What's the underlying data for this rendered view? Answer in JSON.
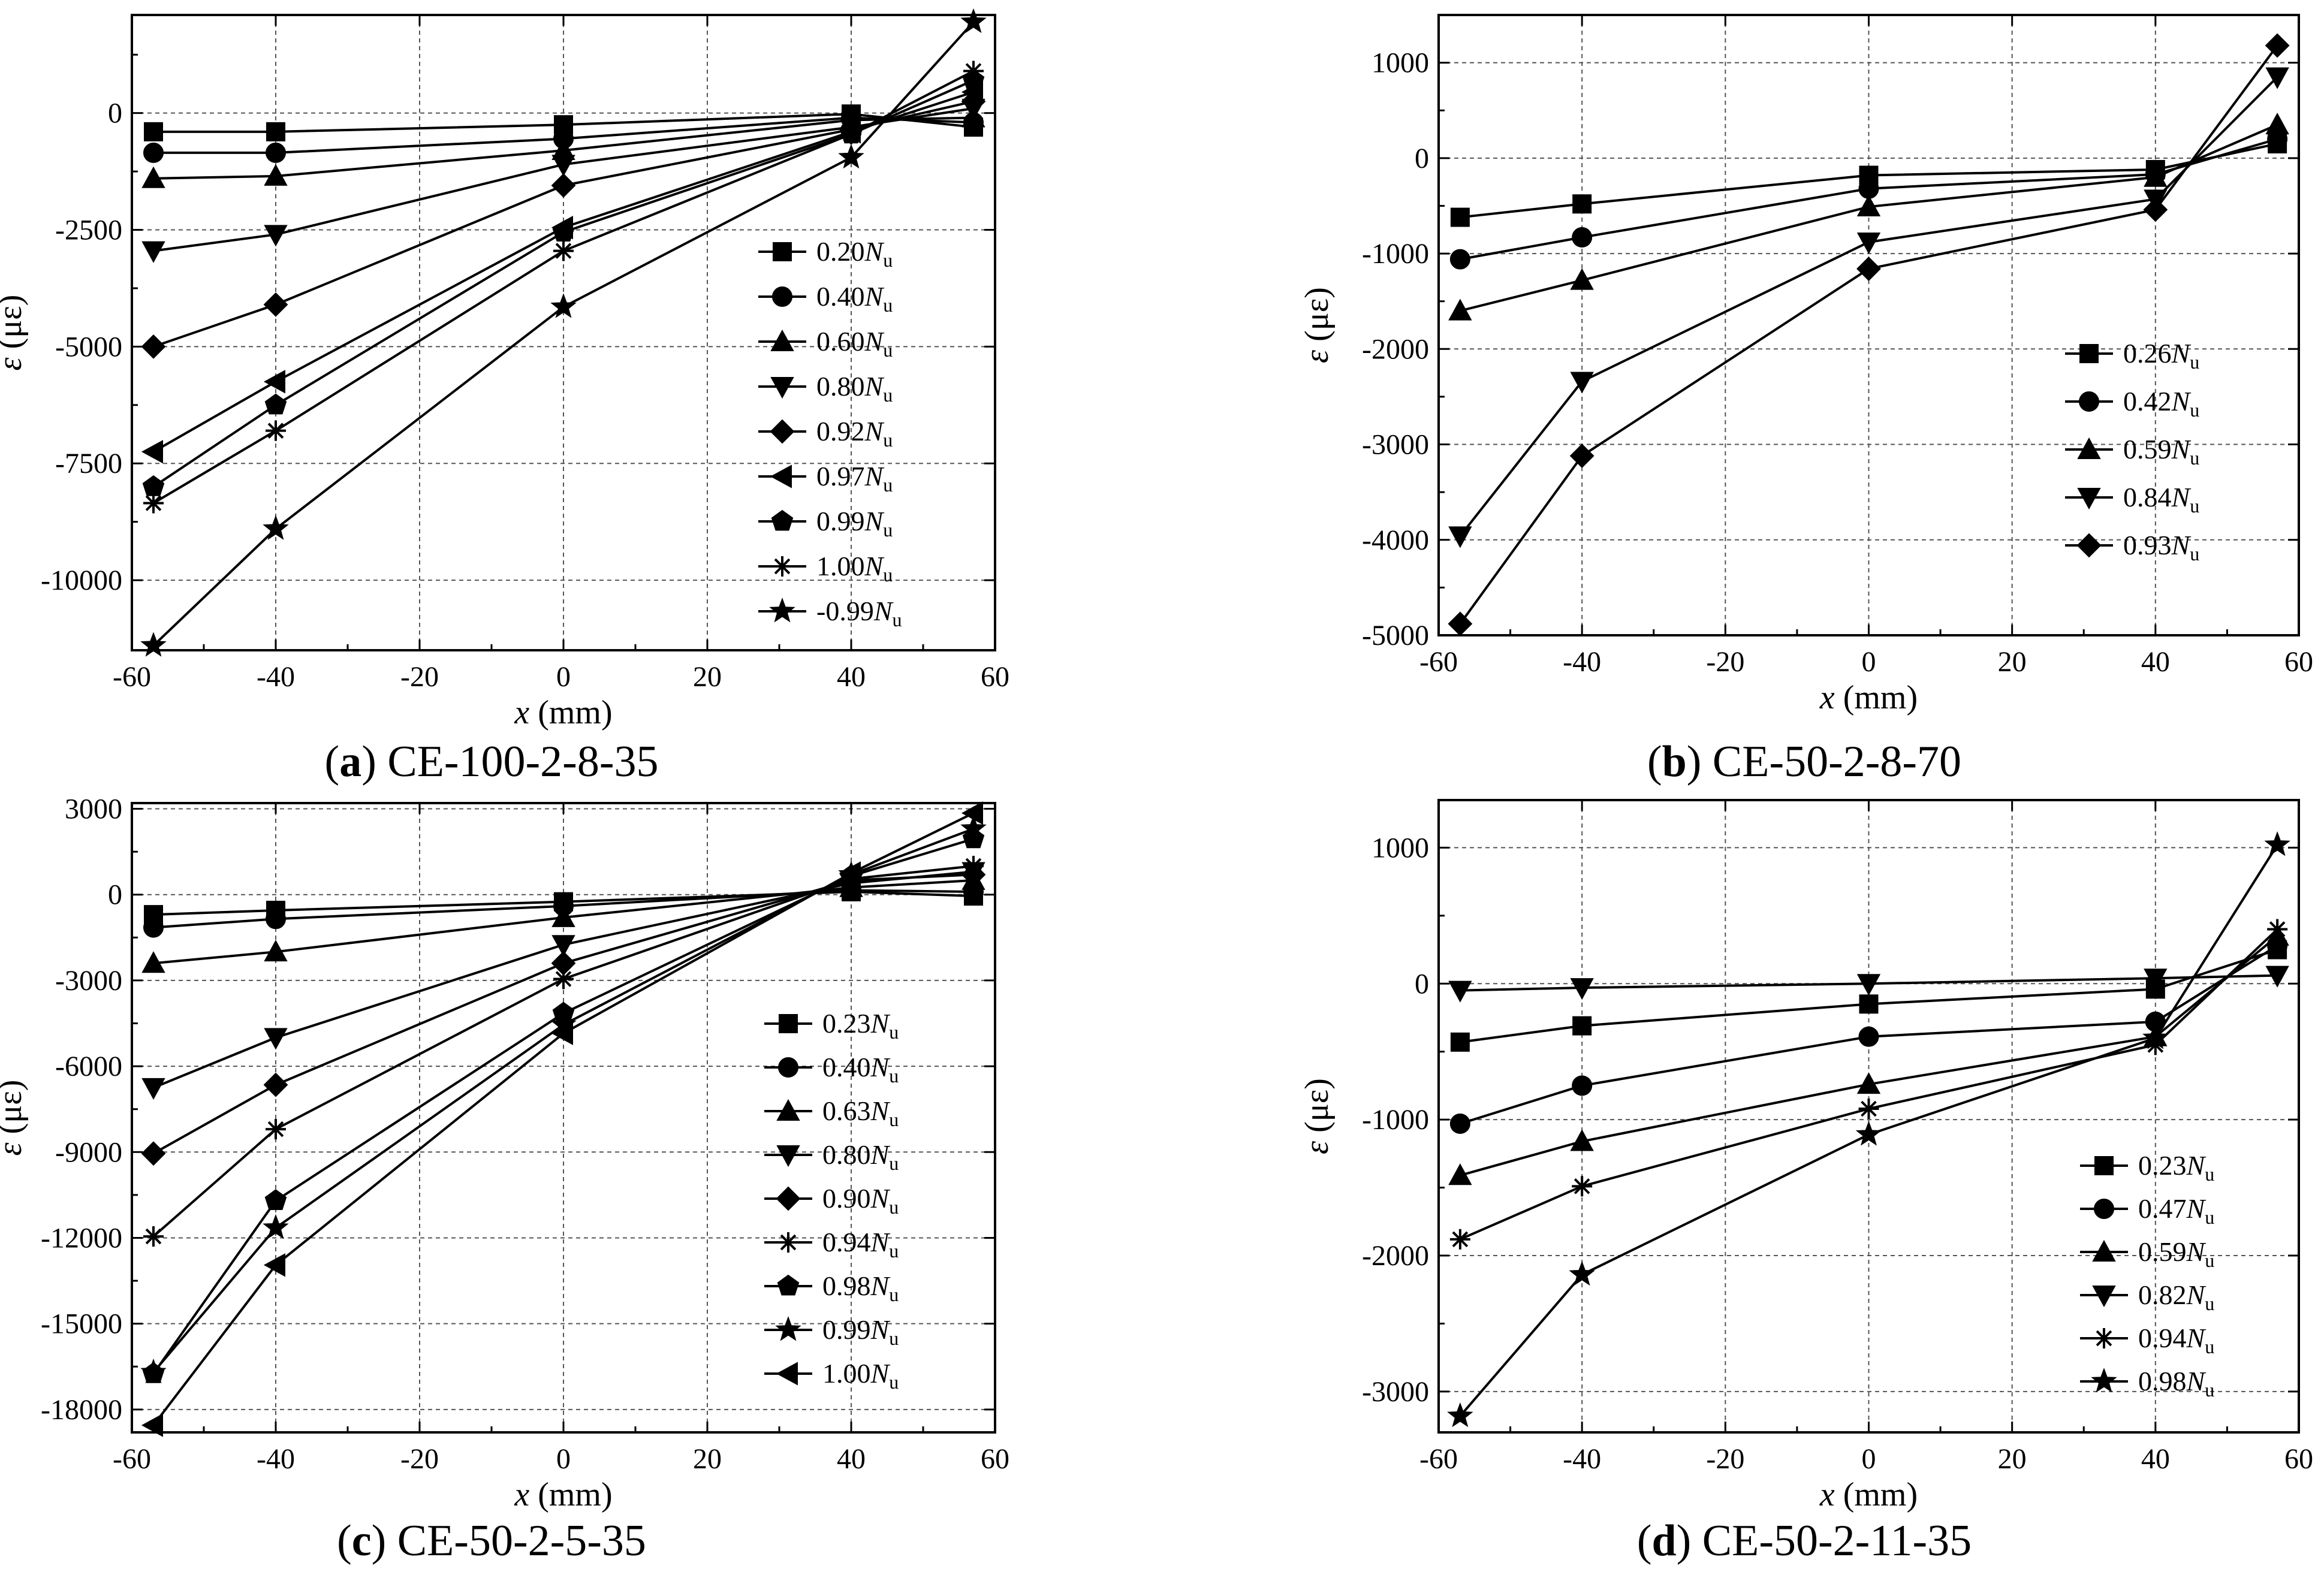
{
  "chart_data": [
    {
      "type": "line",
      "caption_letter": "a",
      "caption_text": "CE-100-2-8-35",
      "xlabel": "x",
      "xlabel_unit": " (mm)",
      "ylabel": "ε",
      "ylabel_unit": " (με)",
      "xlim": [
        -60,
        60
      ],
      "ylim": [
        -11500,
        2100
      ],
      "xticks": [
        -60,
        -40,
        -20,
        0,
        20,
        40,
        60
      ],
      "yticks": [
        -10000,
        -7500,
        -5000,
        -2500,
        0
      ],
      "grid": true,
      "legend_position": "right-middle",
      "x": [
        -57,
        -40,
        0,
        40,
        57
      ],
      "series": [
        {
          "name": "0.20",
          "marker": "square",
          "values": [
            -400,
            -400,
            -250,
            -20,
            -300
          ]
        },
        {
          "name": "0.40",
          "marker": "circle",
          "values": [
            -850,
            -850,
            -550,
            -100,
            -200
          ]
        },
        {
          "name": "0.60",
          "marker": "triangle",
          "values": [
            -1400,
            -1350,
            -800,
            -150,
            -100
          ]
        },
        {
          "name": "0.80",
          "marker": "tri-down",
          "values": [
            -2950,
            -2600,
            -1100,
            -300,
            100
          ]
        },
        {
          "name": "0.92",
          "marker": "diamond",
          "values": [
            -5000,
            -4100,
            -1550,
            -350,
            250
          ]
        },
        {
          "name": "0.97",
          "marker": "tri-left",
          "values": [
            -7250,
            -5750,
            -2450,
            -400,
            450
          ]
        },
        {
          "name": "0.99",
          "marker": "hexagon",
          "values": [
            -8000,
            -6250,
            -2550,
            -450,
            700
          ]
        },
        {
          "name": "1.00",
          "marker": "asterisk",
          "values": [
            -8350,
            -6800,
            -2950,
            -450,
            900
          ]
        },
        {
          "name": "-0.99",
          "marker": "star",
          "values": [
            -11400,
            -8900,
            -4150,
            -950,
            1950
          ]
        }
      ]
    },
    {
      "type": "line",
      "caption_letter": "b",
      "caption_text": "CE-50-2-8-70",
      "xlabel": "x",
      "xlabel_unit": " (mm)",
      "ylabel": "ε",
      "ylabel_unit": " (με)",
      "xlim": [
        -60,
        60
      ],
      "ylim": [
        -5000,
        1500
      ],
      "xticks": [
        -60,
        -40,
        -20,
        0,
        20,
        40,
        60
      ],
      "yticks": [
        -5000,
        -4000,
        -3000,
        -2000,
        -1000,
        0,
        1000
      ],
      "grid": true,
      "legend_position": "right-middle",
      "x": [
        -57,
        -40,
        0,
        40,
        57
      ],
      "series": [
        {
          "name": "0.26",
          "marker": "square",
          "values": [
            -620,
            -480,
            -180,
            -120,
            150
          ]
        },
        {
          "name": "0.42",
          "marker": "circle",
          "values": [
            -1060,
            -830,
            -320,
            -170,
            200
          ]
        },
        {
          "name": "0.59",
          "marker": "triangle",
          "values": [
            -1600,
            -1280,
            -510,
            -200,
            350
          ]
        },
        {
          "name": "0.84",
          "marker": "tri-down",
          "values": [
            -3960,
            -2340,
            -880,
            -430,
            850
          ]
        },
        {
          "name": "0.93",
          "marker": "diamond",
          "values": [
            -4880,
            -3120,
            -1160,
            -540,
            1180
          ]
        }
      ]
    },
    {
      "type": "line",
      "caption_letter": "c",
      "caption_text": "CE-50-2-5-35",
      "xlabel": "x",
      "xlabel_unit": " (mm)",
      "ylabel": "ε",
      "ylabel_unit": " (με)",
      "xlim": [
        -60,
        60
      ],
      "ylim": [
        -18800,
        3200
      ],
      "xticks": [
        -60,
        -40,
        -20,
        0,
        20,
        40,
        60
      ],
      "yticks": [
        -18000,
        -15000,
        -12000,
        -9000,
        -6000,
        -3000,
        0,
        3000
      ],
      "grid": true,
      "legend_position": "right-middle",
      "x": [
        -57,
        -40,
        0,
        40,
        57
      ],
      "series": [
        {
          "name": "0.23",
          "marker": "square",
          "values": [
            -700,
            -550,
            -250,
            100,
            -50
          ]
        },
        {
          "name": "0.40",
          "marker": "circle",
          "values": [
            -1150,
            -850,
            -400,
            150,
            100
          ]
        },
        {
          "name": "0.63",
          "marker": "triangle",
          "values": [
            -2400,
            -2000,
            -800,
            250,
            500
          ]
        },
        {
          "name": "0.80",
          "marker": "tri-down",
          "values": [
            -6750,
            -5000,
            -1750,
            400,
            800
          ]
        },
        {
          "name": "0.90",
          "marker": "diamond",
          "values": [
            -9050,
            -6650,
            -2400,
            500,
            700
          ]
        },
        {
          "name": "0.94",
          "marker": "asterisk",
          "values": [
            -11950,
            -8200,
            -2950,
            550,
            1000
          ]
        },
        {
          "name": "0.98",
          "marker": "hexagon",
          "values": [
            -16750,
            -10700,
            -4150,
            650,
            1950
          ]
        },
        {
          "name": "0.99",
          "marker": "star",
          "values": [
            -16700,
            -11650,
            -4550,
            700,
            2300
          ]
        },
        {
          "name": "1.00",
          "marker": "tri-left",
          "values": [
            -18550,
            -12950,
            -4850,
            750,
            2850
          ]
        }
      ]
    },
    {
      "type": "line",
      "caption_letter": "d",
      "caption_text": "CE-50-2-11-35",
      "xlabel": "x",
      "xlabel_unit": " (mm)",
      "ylabel": "ε",
      "ylabel_unit": " (με)",
      "xlim": [
        -60,
        60
      ],
      "ylim": [
        -3300,
        1350
      ],
      "xticks": [
        -60,
        -40,
        -20,
        0,
        20,
        40,
        60
      ],
      "yticks": [
        -3000,
        -2000,
        -1000,
        0,
        1000
      ],
      "grid": true,
      "legend_position": "right-bottom",
      "x": [
        -57,
        -40,
        0,
        40,
        57
      ],
      "series": [
        {
          "name": "0.23",
          "marker": "square",
          "values": [
            -430,
            -310,
            -150,
            -40,
            250
          ]
        },
        {
          "name": "0.47",
          "marker": "circle",
          "values": [
            -1030,
            -750,
            -390,
            -280,
            280
          ]
        },
        {
          "name": "0.59",
          "marker": "triangle",
          "values": [
            -1410,
            -1160,
            -740,
            -390,
            350
          ]
        },
        {
          "name": "0.82",
          "marker": "tri-down",
          "values": [
            -50,
            -30,
            0,
            40,
            60
          ]
        },
        {
          "name": "0.94",
          "marker": "asterisk",
          "values": [
            -1880,
            -1490,
            -920,
            -450,
            400
          ]
        },
        {
          "name": "0.98",
          "marker": "star",
          "values": [
            -3180,
            -2140,
            -1110,
            -400,
            1020
          ]
        }
      ]
    }
  ],
  "legend_suffix_main": "N",
  "legend_suffix_sub": "u"
}
